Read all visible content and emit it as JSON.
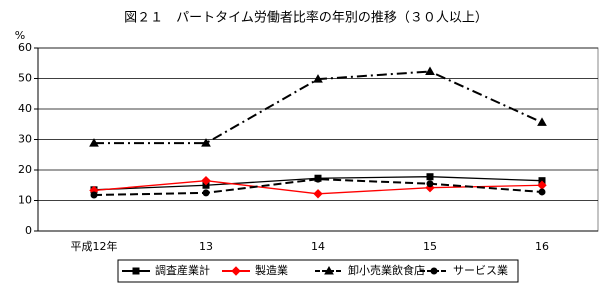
{
  "chart_data": {
    "type": "line",
    "title": "図２１　パートタイム労働者比率の年別の推移（３０人以上）",
    "y_label": "%",
    "categories": [
      "平成12年",
      "13",
      "14",
      "15",
      "16"
    ],
    "series": [
      {
        "name": "調査産業計",
        "color": "#000000",
        "dash": "solid",
        "marker": "square",
        "values": [
          13.5,
          15.0,
          17.3,
          17.8,
          16.5
        ]
      },
      {
        "name": "製造業",
        "color": "#ff0000",
        "dash": "solid",
        "marker": "diamond",
        "values": [
          13.3,
          16.5,
          12.2,
          14.2,
          15.0
        ]
      },
      {
        "name": "卸小売業飲食店",
        "color": "#000000",
        "dash": "dashdot",
        "marker": "triangle",
        "values": [
          28.8,
          28.8,
          49.8,
          52.3,
          35.6
        ]
      },
      {
        "name": "サービス業",
        "color": "#000000",
        "dash": "dashed",
        "marker": "circle",
        "values": [
          11.8,
          12.5,
          17.0,
          15.5,
          12.8
        ]
      }
    ],
    "ylim": [
      0,
      60
    ],
    "yticks": [
      0,
      10,
      20,
      30,
      40,
      50,
      60
    ],
    "grid": true,
    "legend": "bottom"
  }
}
